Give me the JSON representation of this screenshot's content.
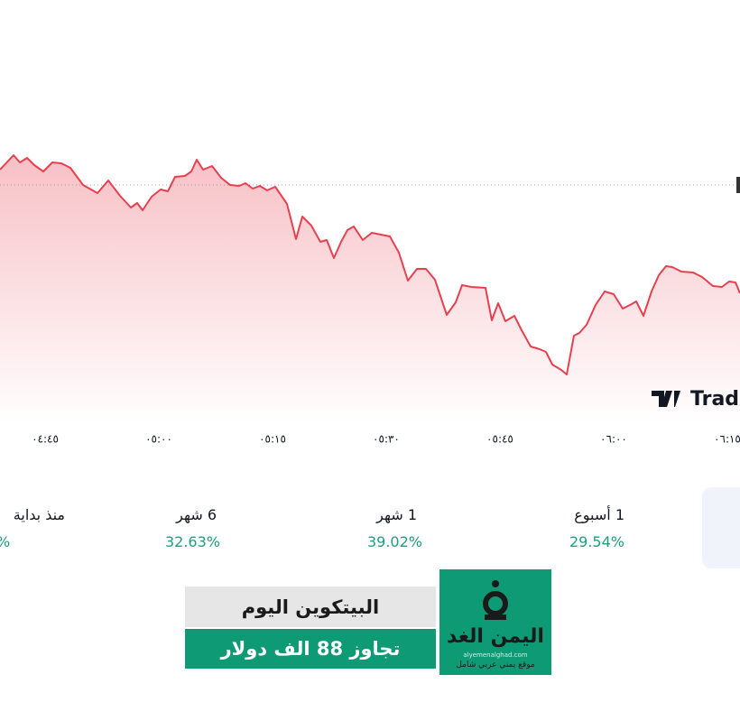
{
  "chart_data": {
    "type": "area",
    "x": [
      279.05,
      280.84,
      281.67,
      282.62,
      283.57,
      284.76,
      285.95,
      287.15,
      288.34,
      290.0,
      291.91,
      293.34,
      294.88,
      296.31,
      297.15,
      297.86,
      299.05,
      300.24,
      301.19,
      302.15,
      303.45,
      304.29,
      305.0,
      305.84,
      307.03,
      308.22,
      309.41,
      310.6,
      311.43,
      312.38,
      313.34,
      314.29,
      315.36,
      316.91,
      318.1,
      318.93,
      320.12,
      321.31,
      322.15,
      323.1,
      324.05,
      324.88,
      325.72,
      326.91,
      328.1,
      329.29,
      330.48,
      331.67,
      332.86,
      334.05,
      335.24,
      336.43,
      337.98,
      339.17,
      340.0,
      341.19,
      343.1,
      343.93,
      344.76,
      345.72,
      346.91,
      347.86,
      349.05,
      350.24,
      351.07,
      351.91,
      353.1,
      353.81,
      354.76,
      355.48,
      356.43,
      357.62,
      358.81,
      360.0,
      361.19,
      362.38,
      362.98,
      363.93,
      365.0,
      365.95,
      366.91,
      367.74,
      368.93,
      370.48,
      371.67,
      373.1,
      374.29,
      375.24,
      376.07,
      376.67
    ],
    "values": [
      282,
      298,
      290,
      295,
      287,
      280,
      290,
      289,
      284,
      265,
      256,
      270,
      253,
      240,
      245,
      237,
      252,
      260,
      258,
      274,
      275,
      280,
      293,
      282,
      286,
      273,
      265,
      264,
      267,
      261,
      264,
      259,
      263,
      244,
      205,
      230,
      220,
      202,
      204,
      184,
      202,
      215,
      219,
      204,
      212,
      210,
      208,
      190,
      159,
      172,
      172,
      160,
      121,
      135,
      154,
      152,
      151,
      115,
      134,
      114,
      120,
      104,
      86,
      83,
      80,
      66,
      60,
      55,
      98,
      101,
      110,
      132,
      147,
      144,
      128,
      133,
      136,
      120,
      147,
      165,
      175,
      174,
      169,
      168,
      163,
      153,
      152,
      158,
      157,
      145
    ],
    "color": "#e8404f",
    "reference_value": 265,
    "xlim": [
      279.05,
      376.67
    ],
    "ylim": [
      0,
      470
    ],
    "xticks": [
      {
        "value": 285,
        "label": "٠٤:٤٥"
      },
      {
        "value": 300,
        "label": "٠٥:٠٠"
      },
      {
        "value": 315,
        "label": "٠٥:١٥"
      },
      {
        "value": 330,
        "label": "٠٥:٣٠"
      },
      {
        "value": 345,
        "label": "٠٥:٤٥"
      },
      {
        "value": 360,
        "label": "٠٦:٠٠"
      },
      {
        "value": 375,
        "label": "٠٦:١٥"
      }
    ],
    "watermark": "Trad"
  },
  "performance": [
    {
      "label": "منذ بداية",
      "value": "%"
    },
    {
      "label": "6 شهر",
      "value": "32.63%"
    },
    {
      "label": "1 شهر",
      "value": "39.02%"
    },
    {
      "label": "1 أسبوع",
      "value": "29.54%"
    }
  ],
  "banner": {
    "headline": "البيتكوين اليوم",
    "subline": "تجاوز 88 الف دولار"
  },
  "logo": {
    "name": "اليمن الغد",
    "url": "alyemenalghad.com",
    "tagline": "موقع يمني عربي شامل"
  }
}
